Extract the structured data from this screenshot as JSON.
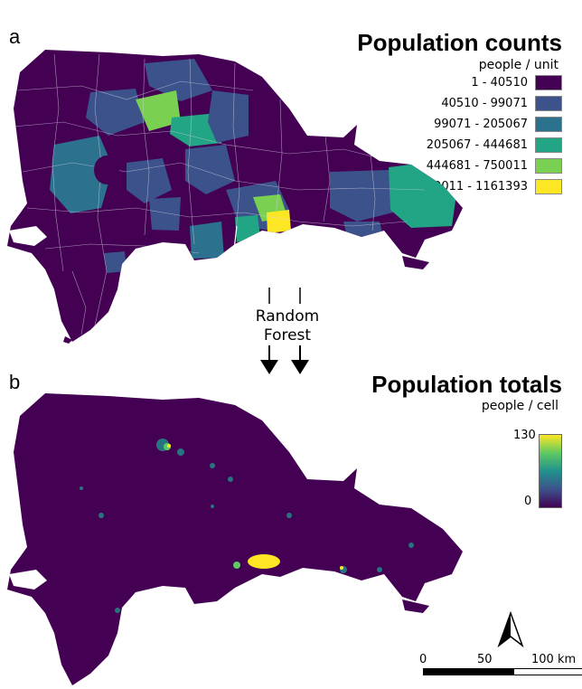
{
  "panel_a": {
    "letter": "a",
    "title": "Population counts",
    "unit": "people / unit",
    "legend": [
      {
        "label": "1 - 40510",
        "color": "#440154"
      },
      {
        "label": "40510 - 99071",
        "color": "#3b528b"
      },
      {
        "label": "99071 - 205067",
        "color": "#2c728e"
      },
      {
        "label": "205067 - 444681",
        "color": "#21a585"
      },
      {
        "label": "444681 - 750011",
        "color": "#7ad151"
      },
      {
        "label": "750011 - 1161393",
        "color": "#fde725"
      }
    ]
  },
  "flow": {
    "line1": "Random",
    "line2": "Forest"
  },
  "panel_b": {
    "letter": "b",
    "title": "Population totals",
    "unit": "people / cell",
    "colorbar": {
      "max_label": "130",
      "min_label": "0",
      "colors": [
        "#440154",
        "#3b528b",
        "#21918c",
        "#5ec962",
        "#fde725"
      ]
    }
  },
  "scale": {
    "zero": "0",
    "mid": "50",
    "end": "100 km"
  },
  "north_arrow": "north-arrow-icon"
}
